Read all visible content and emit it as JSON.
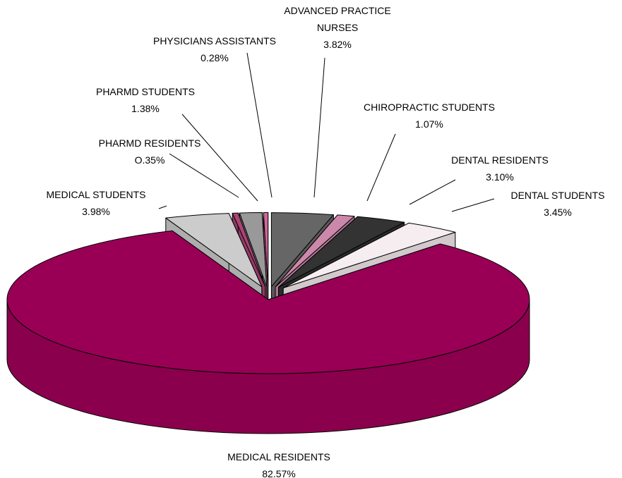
{
  "chart_data": {
    "type": "pie3d",
    "categories": [
      "ADVANCED PRACTICE NURSES",
      "CHIROPRACTIC STUDENTS",
      "DENTAL RESIDENTS",
      "DENTAL STUDENTS",
      "MEDICAL RESIDENTS",
      "MEDICAL STUDENTS",
      "PHARMD RESIDENTS",
      "PHARMD STUDENTS",
      "PHYSICIANS ASSISTANTS"
    ],
    "values": [
      3.82,
      1.07,
      3.1,
      3.45,
      82.57,
      3.98,
      0.35,
      1.38,
      0.28
    ],
    "value_labels": [
      "3.82%",
      "1.07%",
      "3.10%",
      "3.45%",
      "82.57%",
      "3.98%",
      "O.35%",
      "1.38%",
      "0.28%"
    ],
    "colors": [
      "#666666",
      "#cc88aa",
      "#333333",
      "#f6edf0",
      "#990055",
      "#cccccc",
      "#aa4477",
      "#999999",
      "#cc6699"
    ]
  }
}
